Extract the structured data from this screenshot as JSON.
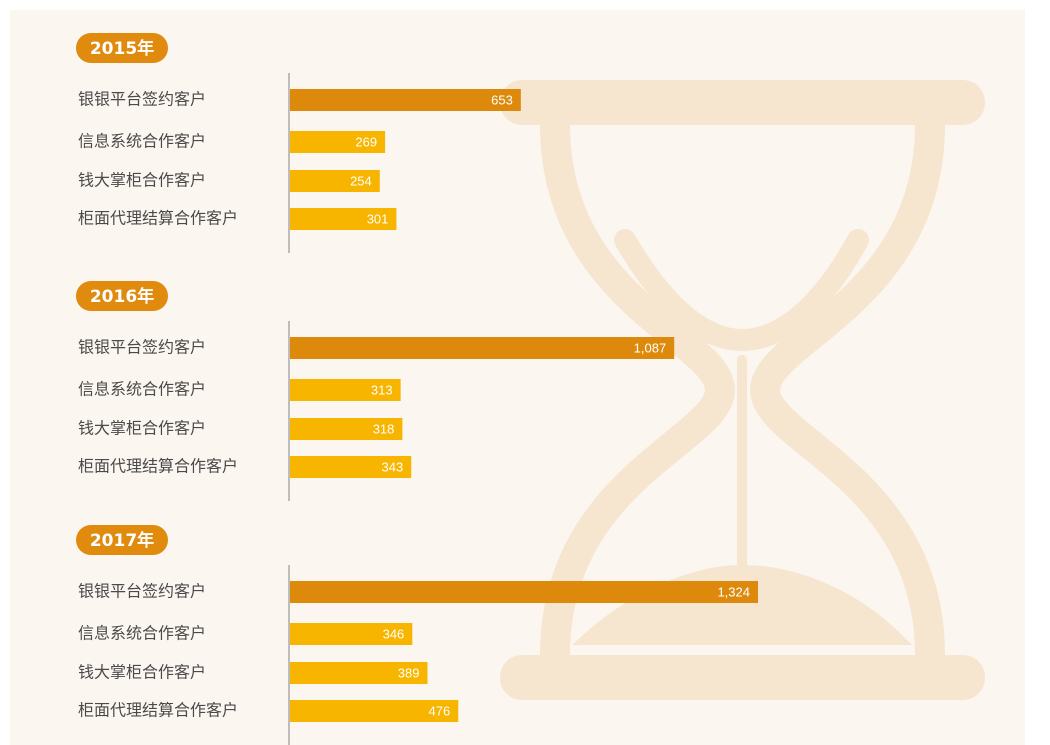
{
  "chart_data": [
    {
      "type": "bar",
      "title": "2015年",
      "categories": [
        "银银平台签约客户",
        "信息系统合作客户",
        "钱大掌柜合作客户",
        "柜面代理结算合作客户"
      ],
      "values": [
        653,
        269,
        254,
        301
      ],
      "value_labels": [
        "653",
        "269",
        "254",
        "301"
      ],
      "colors": [
        "#dd8a0c",
        "#f7b500",
        "#f7b500",
        "#f7b500"
      ]
    },
    {
      "type": "bar",
      "title": "2016年",
      "categories": [
        "银银平台签约客户",
        "信息系统合作客户",
        "钱大掌柜合作客户",
        "柜面代理结算合作客户"
      ],
      "values": [
        1087,
        313,
        318,
        343
      ],
      "value_labels": [
        "1,087",
        "313",
        "318",
        "343"
      ],
      "colors": [
        "#dd8a0c",
        "#f7b500",
        "#f7b500",
        "#f7b500"
      ]
    },
    {
      "type": "bar",
      "title": "2017年",
      "categories": [
        "银银平台签约客户",
        "信息系统合作客户",
        "钱大掌柜合作客户",
        "柜面代理结算合作客户"
      ],
      "values": [
        1324,
        346,
        389,
        476
      ],
      "value_labels": [
        "1,324",
        "346",
        "389",
        "476"
      ],
      "colors": [
        "#dd8a0c",
        "#f7b500",
        "#f7b500",
        "#f7b500"
      ]
    }
  ]
}
